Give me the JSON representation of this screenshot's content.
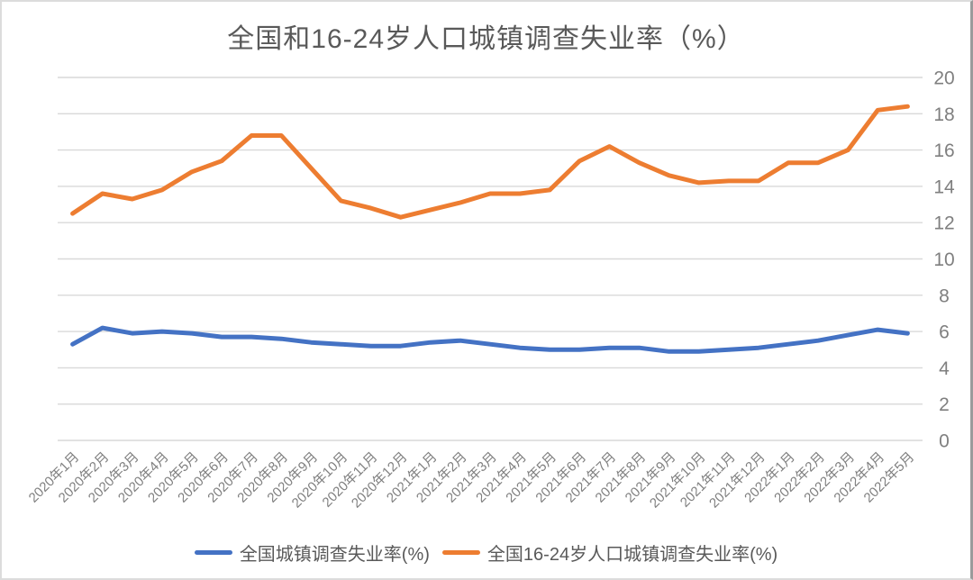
{
  "title": "全国和16-24岁人口城镇调查失业率（%）",
  "chart_data": {
    "type": "line",
    "categories": [
      "2020年1月",
      "2020年2月",
      "2020年3月",
      "2020年4月",
      "2020年5月",
      "2020年6月",
      "2020年7月",
      "2020年8月",
      "2020年9月",
      "2020年10月",
      "2020年11月",
      "2020年12月",
      "2021年1月",
      "2021年2月",
      "2021年3月",
      "2021年4月",
      "2021年5月",
      "2021年6月",
      "2021年7月",
      "2021年8月",
      "2021年9月",
      "2021年10月",
      "2021年11月",
      "2021年12月",
      "2022年1月",
      "2022年2月",
      "2022年3月",
      "2022年4月",
      "2022年5月"
    ],
    "series": [
      {
        "name": "全国城镇调查失业率(%)",
        "color": "#4472C4",
        "values": [
          5.3,
          6.2,
          5.9,
          6.0,
          5.9,
          5.7,
          5.7,
          5.6,
          5.4,
          5.3,
          5.2,
          5.2,
          5.4,
          5.5,
          5.3,
          5.1,
          5.0,
          5.0,
          5.1,
          5.1,
          4.9,
          4.9,
          5.0,
          5.1,
          5.3,
          5.5,
          5.8,
          6.1,
          5.9
        ]
      },
      {
        "name": "全国16-24岁人口城镇调查失业率(%)",
        "color": "#ED7D31",
        "values": [
          12.5,
          13.6,
          13.3,
          13.8,
          14.8,
          15.4,
          16.8,
          16.8,
          15.0,
          13.2,
          12.8,
          12.3,
          12.7,
          13.1,
          13.6,
          13.6,
          13.8,
          15.4,
          16.2,
          15.3,
          14.6,
          14.2,
          14.3,
          14.3,
          15.3,
          15.3,
          16.0,
          18.2,
          18.4
        ]
      }
    ],
    "ylim": [
      0,
      20
    ],
    "yticks": [
      0,
      2,
      4,
      6,
      8,
      10,
      12,
      14,
      16,
      18,
      20
    ],
    "grid": true,
    "y_axis_side": "right",
    "legend_position": "bottom"
  },
  "style_colors": {
    "gridline": "#d9d9d9",
    "axis_label": "#7f7f7f",
    "title_text": "#595959",
    "legend_text": "#595959"
  }
}
